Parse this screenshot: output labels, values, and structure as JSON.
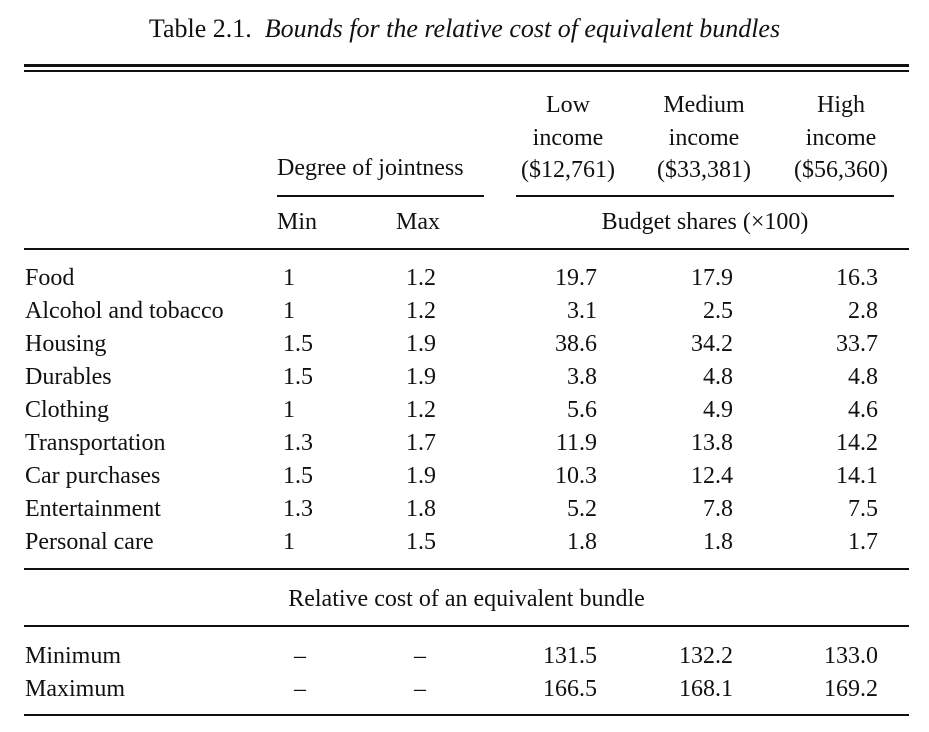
{
  "caption": {
    "label": "Table 2.1.",
    "title": "Bounds for the relative cost of equivalent bundles"
  },
  "header": {
    "degree_of_jointness": "Degree of jointness",
    "min": "Min",
    "max": "Max",
    "budget_shares": "Budget shares (×100)",
    "income_groups": [
      {
        "line1": "Low",
        "line2": "income",
        "line3": "($12,761)"
      },
      {
        "line1": "Medium",
        "line2": "income",
        "line3": "($33,381)"
      },
      {
        "line1": "High",
        "line2": "income",
        "line3": "($56,360)"
      }
    ]
  },
  "rows": [
    {
      "label": "Food",
      "min": "1",
      "max": "1.2",
      "low": "19.7",
      "medium": "17.9",
      "high": "16.3"
    },
    {
      "label": "Alcohol and tobacco",
      "min": "1",
      "max": "1.2",
      "low": "3.1",
      "medium": "2.5",
      "high": "2.8"
    },
    {
      "label": "Housing",
      "min": "1.5",
      "max": "1.9",
      "low": "38.6",
      "medium": "34.2",
      "high": "33.7"
    },
    {
      "label": "Durables",
      "min": "1.5",
      "max": "1.9",
      "low": "3.8",
      "medium": "4.8",
      "high": "4.8"
    },
    {
      "label": "Clothing",
      "min": "1",
      "max": "1.2",
      "low": "5.6",
      "medium": "4.9",
      "high": "4.6"
    },
    {
      "label": "Transportation",
      "min": "1.3",
      "max": "1.7",
      "low": "11.9",
      "medium": "13.8",
      "high": "14.2"
    },
    {
      "label": "Car purchases",
      "min": "1.5",
      "max": "1.9",
      "low": "10.3",
      "medium": "12.4",
      "high": "14.1"
    },
    {
      "label": "Entertainment",
      "min": "1.3",
      "max": "1.8",
      "low": "5.2",
      "medium": "7.8",
      "high": "7.5"
    },
    {
      "label": "Personal care",
      "min": "1",
      "max": "1.5",
      "low": "1.8",
      "medium": "1.8",
      "high": "1.7"
    }
  ],
  "section_title": "Relative cost of an equivalent bundle",
  "summary_rows": [
    {
      "label": "Minimum",
      "min": "–",
      "max": "–",
      "low": "131.5",
      "medium": "132.2",
      "high": "133.0"
    },
    {
      "label": "Maximum",
      "min": "–",
      "max": "–",
      "low": "166.5",
      "medium": "168.1",
      "high": "169.2"
    }
  ]
}
